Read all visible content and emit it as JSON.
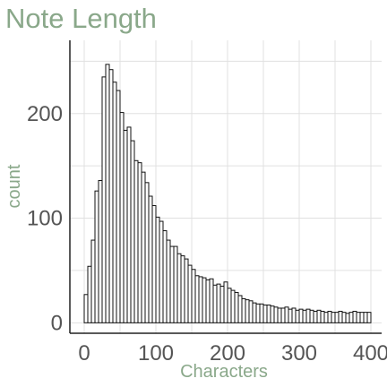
{
  "chart_data": {
    "type": "bar",
    "title": "Note Length",
    "xlabel": "Characters",
    "ylabel": "count",
    "xlim": [
      -20,
      415
    ],
    "ylim": [
      -10,
      270
    ],
    "x_ticks": [
      0,
      100,
      200,
      300,
      400
    ],
    "y_ticks": [
      0,
      100,
      200
    ],
    "grid": true,
    "bin_width": 5,
    "bin_start": 0,
    "values": [
      27,
      54,
      79,
      126,
      136,
      235,
      247,
      242,
      230,
      222,
      201,
      184,
      187,
      174,
      155,
      153,
      144,
      134,
      121,
      112,
      101,
      97,
      88,
      79,
      73,
      73,
      66,
      64,
      61,
      55,
      51,
      45,
      44,
      43,
      41,
      42,
      36,
      37,
      35,
      39,
      33,
      31,
      29,
      26,
      23,
      22,
      21,
      19,
      18,
      18,
      17,
      17,
      16,
      15,
      14,
      14,
      15,
      13,
      14,
      12,
      13,
      12,
      13,
      12,
      11,
      12,
      11,
      10,
      11,
      10,
      10,
      11,
      10,
      9,
      10,
      11,
      10,
      10,
      10,
      10
    ],
    "colors": {
      "bar_fill": "#ffffff",
      "bar_stroke": "#111111",
      "title": "#8aa88a",
      "axis_label": "#8aa88a",
      "tick_label": "#555555",
      "grid": "#e0e0e0"
    }
  }
}
